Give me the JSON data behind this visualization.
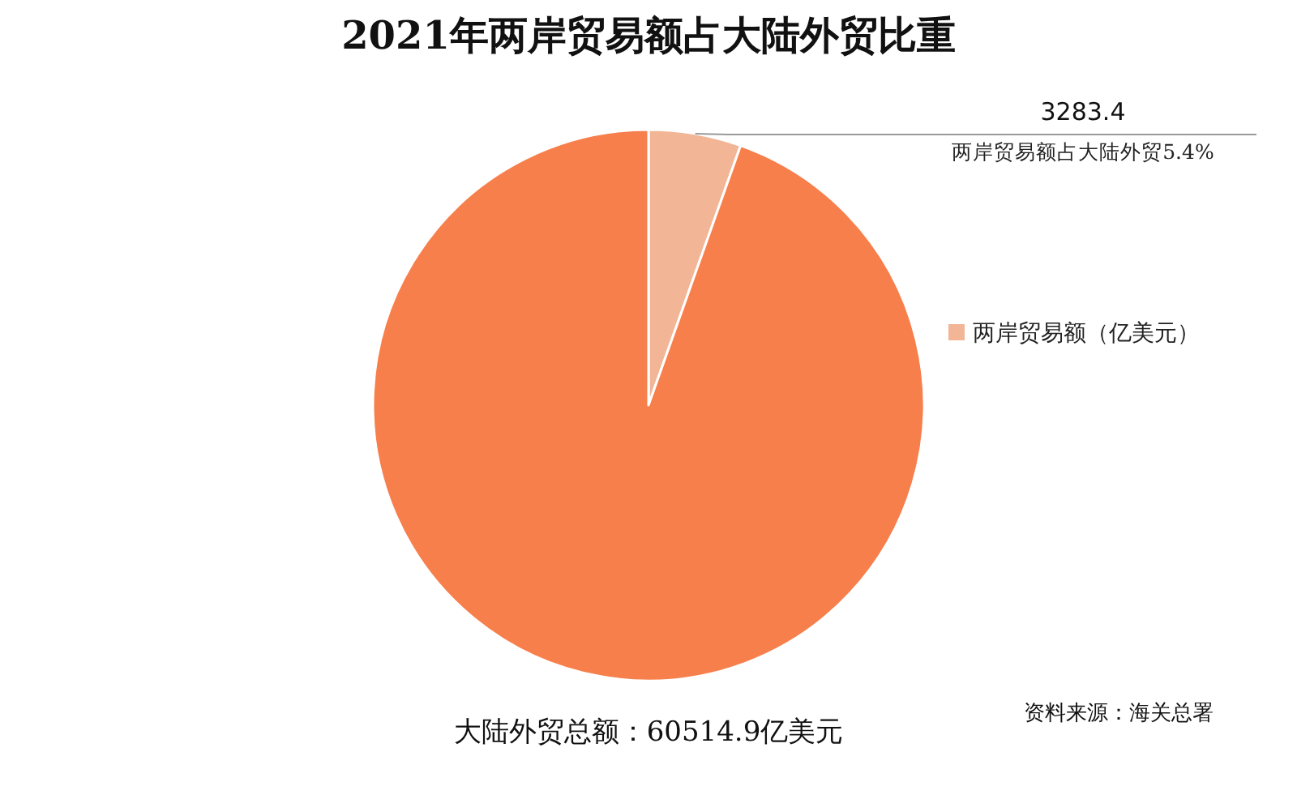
{
  "chart_data": {
    "type": "pie",
    "title": "2021年两岸贸易额占大陆外贸比重",
    "categories": [
      "两岸贸易额（亿美元）",
      null
    ],
    "values": [
      3283.4,
      57231.5
    ],
    "colors": [
      "#f2b595",
      "#f77f4c"
    ],
    "value_labels": [
      "3283.4",
      null
    ],
    "annotations": [
      {
        "text": "两岸贸易额占大陆外贸5.4%"
      },
      {
        "text": "大陆外贸总额：60514.9亿美元"
      },
      {
        "text": "资料来源：海关总署"
      }
    ],
    "legend": "right"
  }
}
